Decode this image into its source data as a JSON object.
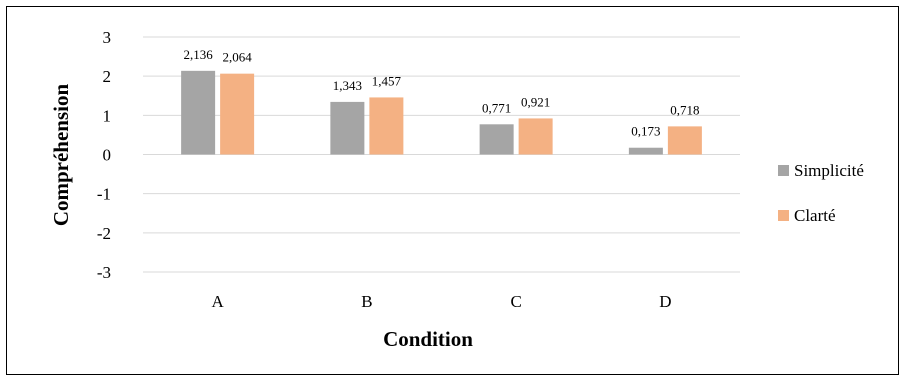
{
  "chart_data": {
    "type": "bar",
    "title": "",
    "xlabel": "Condition",
    "ylabel": "Compréhension",
    "categories": [
      "A",
      "B",
      "C",
      "D"
    ],
    "series": [
      {
        "name": "Simplicité",
        "values": [
          2.136,
          1.343,
          0.771,
          0.173
        ],
        "labels": [
          "2,136",
          "1,343",
          "0,771",
          "0,173"
        ],
        "color": "#a5a5a5"
      },
      {
        "name": "Clarté",
        "values": [
          2.064,
          1.457,
          0.921,
          0.718
        ],
        "labels": [
          "2,064",
          "1,457",
          "0,921",
          "0,718"
        ],
        "color": "#f4b183"
      }
    ],
    "ylim": [
      -3,
      3
    ],
    "yticks": [
      "-3",
      "-2",
      "-1",
      "0",
      "1",
      "2",
      "3"
    ],
    "grid": true,
    "legend": "right"
  }
}
